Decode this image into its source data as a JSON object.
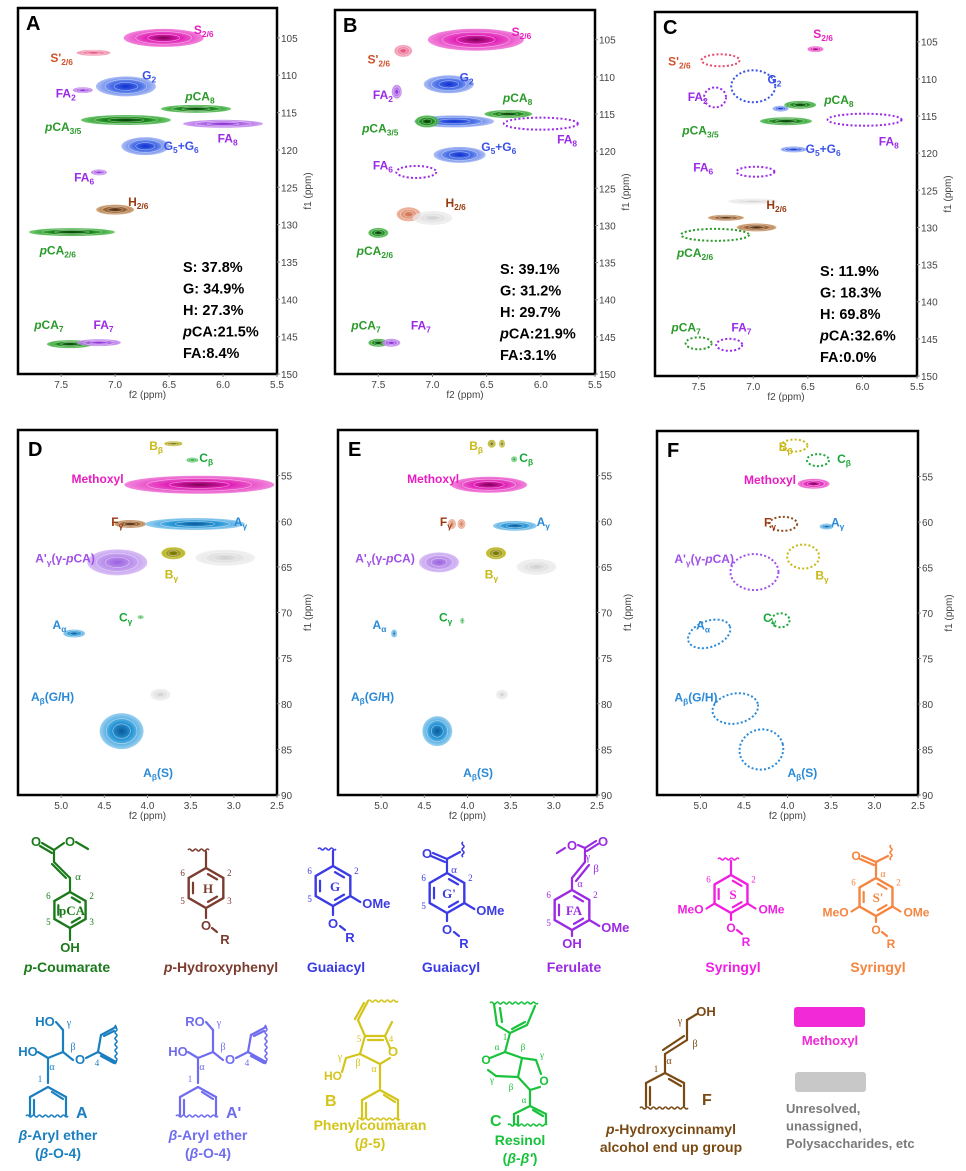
{
  "figure": {
    "panels_aromatic": [
      {
        "letter": "A",
        "stats": [
          {
            "label": "S: ",
            "value": "37.8%"
          },
          {
            "label": "G: ",
            "value": "34.9%"
          },
          {
            "label": "H: ",
            "value": "27.3%"
          },
          {
            "label": "pCA:",
            "value": "21.5%"
          },
          {
            "label": "FA:",
            "value": "8.4%"
          }
        ],
        "mode": "spectrum"
      },
      {
        "letter": "B",
        "stats": [
          {
            "label": "S: ",
            "value": "39.1%"
          },
          {
            "label": "G: ",
            "value": "31.2%"
          },
          {
            "label": "H: ",
            "value": "29.7%"
          },
          {
            "label": "pCA:",
            "value": "21.9%"
          },
          {
            "label": "FA:",
            "value": "3.1%"
          }
        ],
        "mode": "spectrum"
      },
      {
        "letter": "C",
        "stats": [
          {
            "label": "S: ",
            "value": "11.9%"
          },
          {
            "label": "G: ",
            "value": "18.3%"
          },
          {
            "label": "H: ",
            "value": "69.8%"
          },
          {
            "label": "pCA:",
            "value": "32.6%"
          },
          {
            "label": "FA:",
            "value": "0.0%"
          }
        ],
        "mode": "spectrum"
      }
    ],
    "panels_aliphatic": [
      {
        "letter": "D"
      },
      {
        "letter": "E"
      },
      {
        "letter": "F"
      }
    ],
    "aromatic_axes": {
      "xlabel": "f2 (ppm)",
      "ylabel": "f1 (ppm)",
      "x_ticks": [
        "7.5",
        "7.0",
        "6.5",
        "6.0",
        "5.5"
      ],
      "y_ticks": [
        "105",
        "110",
        "115",
        "120",
        "125",
        "130",
        "135",
        "140",
        "145",
        "150"
      ]
    },
    "aliphatic_axes": {
      "xlabel": "f2 (ppm)",
      "ylabel": "f1 (ppm)",
      "x_ticks": [
        "5.0",
        "4.5",
        "4.0",
        "3.5",
        "3.0",
        "2.5"
      ],
      "y_ticks": [
        "55",
        "60",
        "65",
        "70",
        "75",
        "80",
        "85",
        "90"
      ]
    },
    "aromatic_labels": {
      "S26": {
        "main": "S",
        "sub": "2/6"
      },
      "Sp26": {
        "main": "S'",
        "sub": "2/6"
      },
      "G2": {
        "main": "G",
        "sub": "2"
      },
      "FA2": {
        "main": "FA",
        "sub": "2"
      },
      "pCA8": {
        "pre": "p",
        "main": "CA",
        "sub": "8"
      },
      "pCA35": {
        "pre": "p",
        "main": "CA",
        "sub": "3/5"
      },
      "G56": {
        "main": "G",
        "sub": "5",
        "plus": "+G",
        "sub2": "6"
      },
      "FA8": {
        "main": "FA",
        "sub": "8"
      },
      "FA6": {
        "main": "FA",
        "sub": "6"
      },
      "H26": {
        "main": "H",
        "sub": "2/6"
      },
      "pCA26": {
        "pre": "p",
        "main": "CA",
        "sub": "2/6"
      },
      "pCA7": {
        "pre": "p",
        "main": "CA",
        "sub": "7"
      },
      "FA7": {
        "main": "FA",
        "sub": "7"
      }
    },
    "aliphatic_labels": {
      "Bb": {
        "main": "B",
        "sub": "β"
      },
      "Cb": {
        "main": "C",
        "sub": "β"
      },
      "Methoxyl": {
        "main": "Methoxyl"
      },
      "Fg": {
        "main": "F",
        "sub": "γ"
      },
      "Ag": {
        "main": "A",
        "sub": "γ"
      },
      "Apg": {
        "main": "A'",
        "sub": "γ",
        "tail": "(γ-",
        "tail_it": "p",
        "tail2": "CA)"
      },
      "Bg": {
        "main": "B",
        "sub": "γ"
      },
      "Cg": {
        "main": "C",
        "sub": "γ"
      },
      "Aa": {
        "main": "A",
        "sub": "α"
      },
      "AbGH": {
        "main": "A",
        "sub": "β",
        "tail": "(G/H)"
      },
      "AbS": {
        "main": "A",
        "sub": "β",
        "tail": "(S)"
      }
    },
    "structures_row1": [
      {
        "name": "p-Coumarate",
        "pre": "p",
        "rest": "-Coumarate",
        "color": "#1a7a1a",
        "ring": "pCA"
      },
      {
        "name": "p-Hydroxyphenyl",
        "pre": "p",
        "rest": "-Hydroxyphenyl",
        "color": "#7b3b2e",
        "ring": "H"
      },
      {
        "name": "Guaiacyl",
        "rest": "Guaiacyl",
        "color": "#3b3be6",
        "ring": "G"
      },
      {
        "name": "Guaiacyl",
        "rest": "Guaiacyl",
        "color": "#3b3be6",
        "ring": "G'"
      },
      {
        "name": "Ferulate",
        "rest": "Ferulate",
        "color": "#9a2be2",
        "ring": "FA"
      },
      {
        "name": "Syringyl",
        "rest": "Syringyl",
        "color": "#f01ee0",
        "ring": "S"
      },
      {
        "name": "Syringyl",
        "rest": "Syringyl",
        "color": "#f5853f",
        "ring": "S'"
      }
    ],
    "structures_row2": [
      {
        "line1_pre": "β",
        "line1": "-Aryl ether",
        "line2_pre": "(",
        "line2_it": "β",
        "line2": "-O-4)",
        "tag": "A",
        "color": "#1a7fc0"
      },
      {
        "line1_pre": "β",
        "line1": "-Aryl ether",
        "line2_pre": "(",
        "line2_it": "β",
        "line2": "-O-4)",
        "tag": "A'",
        "color": "#6f6cf0"
      },
      {
        "line1": "Phenylcoumaran",
        "line2_pre": "(",
        "line2_it": "β",
        "line2": "-5)",
        "tag": "B",
        "color": "#d4c41a"
      },
      {
        "line1": "Resinol",
        "line2_pre": "(",
        "line2_it": "β-β'",
        "line2": ")",
        "tag": "C",
        "color": "#18c23a"
      },
      {
        "line1_pre": "p",
        "line1": "-Hydroxycinnamyl",
        "line2": "alcohol end up group",
        "tag": "F",
        "color": "#7a4a14"
      }
    ],
    "chem_atoms": {
      "O": "O",
      "OH": "OH",
      "HO": "HO",
      "RO": "RO",
      "R": "R",
      "OMe": "OMe",
      "MeO": "MeO",
      "alpha": "α",
      "beta": "β",
      "gamma": "γ",
      "n1": "1",
      "n2": "2",
      "n3": "3",
      "n4": "4",
      "n5": "5",
      "n6": "6"
    },
    "legend": [
      {
        "label": "Methoxyl",
        "color": "#f229d6"
      },
      {
        "label_lines": [
          "Unresolved,",
          "unassigned,",
          "Polysaccharides, etc"
        ],
        "color": "#c8c8c8"
      }
    ]
  }
}
